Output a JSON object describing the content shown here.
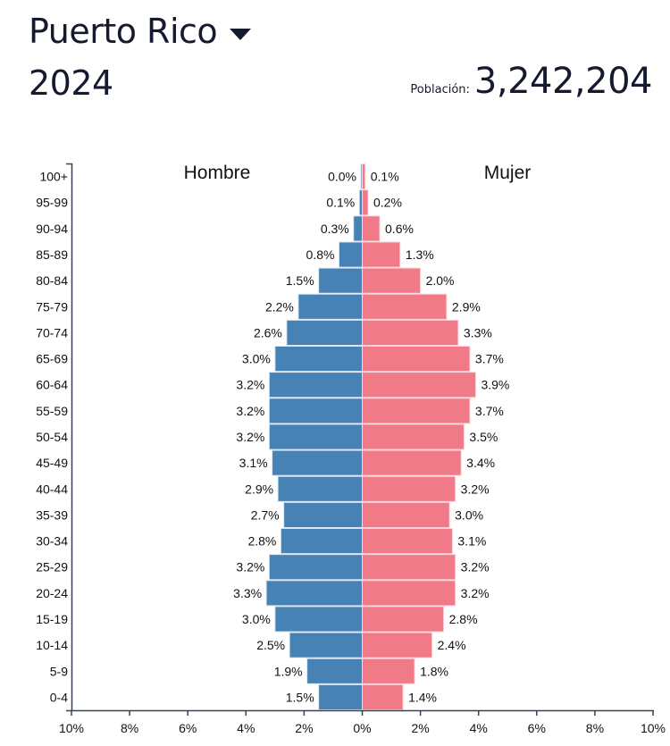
{
  "header": {
    "country": "Puerto Rico",
    "year": "2024",
    "population_label": "Población:",
    "population_value": "3,242,204"
  },
  "colors": {
    "male": "#4682b4",
    "female": "#f07a87",
    "axis": "#374151"
  },
  "chart_data": {
    "type": "bar",
    "orientation": "horizontal-population-pyramid",
    "title": "",
    "left_label": "Hombre",
    "right_label": "Mujer",
    "xlabel": "",
    "ylabel": "",
    "xlim": [
      -10,
      10
    ],
    "x_ticks": [
      "10%",
      "8%",
      "6%",
      "4%",
      "2%",
      "0%",
      "2%",
      "4%",
      "6%",
      "8%",
      "10%"
    ],
    "categories": [
      "100+",
      "95-99",
      "90-94",
      "85-89",
      "80-84",
      "75-79",
      "70-74",
      "65-69",
      "60-64",
      "55-59",
      "50-54",
      "45-49",
      "40-44",
      "35-39",
      "30-34",
      "25-29",
      "20-24",
      "15-19",
      "10-14",
      "5-9",
      "0-4"
    ],
    "series": [
      {
        "name": "Hombre",
        "values": [
          0.0,
          0.1,
          0.3,
          0.8,
          1.5,
          2.2,
          2.6,
          3.0,
          3.2,
          3.2,
          3.2,
          3.1,
          2.9,
          2.7,
          2.8,
          3.2,
          3.3,
          3.0,
          2.5,
          1.9,
          1.5
        ],
        "labels": [
          "0.0%",
          "0.1%",
          "0.3%",
          "0.8%",
          "1.5%",
          "2.2%",
          "2.6%",
          "3.0%",
          "3.2%",
          "3.2%",
          "3.2%",
          "3.1%",
          "2.9%",
          "2.7%",
          "2.8%",
          "3.2%",
          "3.3%",
          "3.0%",
          "2.5%",
          "1.9%",
          "1.5%"
        ]
      },
      {
        "name": "Mujer",
        "values": [
          0.1,
          0.2,
          0.6,
          1.3,
          2.0,
          2.9,
          3.3,
          3.7,
          3.9,
          3.7,
          3.5,
          3.4,
          3.2,
          3.0,
          3.1,
          3.2,
          3.2,
          2.8,
          2.4,
          1.8,
          1.4
        ],
        "labels": [
          "0.1%",
          "0.2%",
          "0.6%",
          "1.3%",
          "2.0%",
          "2.9%",
          "3.3%",
          "3.7%",
          "3.9%",
          "3.7%",
          "3.5%",
          "3.4%",
          "3.2%",
          "3.0%",
          "3.1%",
          "3.2%",
          "3.2%",
          "2.8%",
          "2.4%",
          "1.8%",
          "1.4%"
        ]
      }
    ],
    "grid": false,
    "legend": "none"
  }
}
